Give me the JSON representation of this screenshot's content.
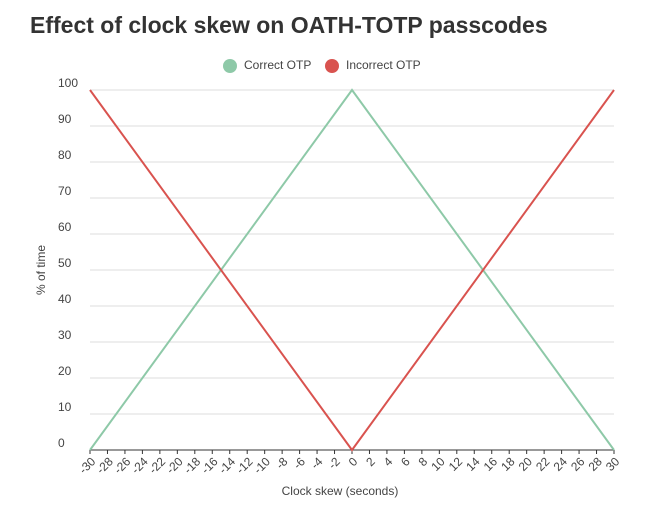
{
  "chart_data": {
    "type": "line",
    "title": "Effect of clock skew on OATH-TOTP passcodes",
    "x_label": "Clock skew (seconds)",
    "y_label": "% of time",
    "x": [
      -30,
      0,
      30
    ],
    "series": [
      {
        "name": "Correct OTP",
        "color": "#8ec9a8",
        "values": [
          0,
          100,
          0
        ]
      },
      {
        "name": "Incorrect OTP",
        "color": "#d9534f",
        "values": [
          100,
          0,
          100
        ]
      }
    ],
    "xlim": [
      -30,
      30
    ],
    "xticks": [
      -30,
      -28,
      -26,
      -24,
      -22,
      -20,
      -18,
      -16,
      -14,
      -12,
      -10,
      -8,
      -6,
      -4,
      -2,
      0,
      2,
      4,
      6,
      8,
      10,
      12,
      14,
      16,
      18,
      20,
      22,
      24,
      26,
      28,
      30
    ],
    "ylim": [
      0,
      100
    ],
    "yticks": [
      0,
      10,
      20,
      30,
      40,
      50,
      60,
      70,
      80,
      90,
      100
    ],
    "grid": true,
    "legend": "top"
  }
}
